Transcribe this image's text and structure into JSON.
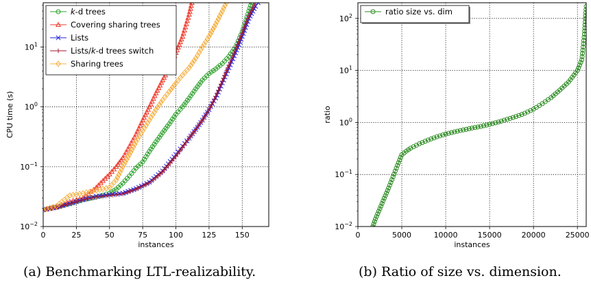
{
  "chart_data": [
    {
      "type": "line",
      "caption": "(a) Benchmarking LTL-realizability.",
      "xlabel": "instances",
      "ylabel": "CPU time (s)",
      "xlim": [
        0,
        170
      ],
      "ylim": [
        0.01,
        55
      ],
      "yscale": "log",
      "xticks": [
        "0",
        "25",
        "50",
        "75",
        "100",
        "125",
        "150"
      ],
      "xtick_values": [
        0,
        25,
        50,
        75,
        100,
        125,
        150
      ],
      "yticks": [
        "10^-2",
        "10^-1",
        "10^0",
        "10^1"
      ],
      "ytick_values": [
        0.01,
        0.1,
        1,
        10
      ],
      "grid": true,
      "legend_position": "top-left",
      "series": [
        {
          "name": "k-d trees",
          "color": "#2ca02c",
          "marker": "circle",
          "x": [
            0,
            10,
            20,
            30,
            40,
            50,
            55,
            60,
            65,
            70,
            75,
            80,
            85,
            90,
            95,
            100,
            105,
            110,
            115,
            120,
            125,
            130,
            135,
            140,
            145,
            150,
            155,
            157
          ],
          "y": [
            0.019,
            0.021,
            0.024,
            0.028,
            0.031,
            0.036,
            0.042,
            0.053,
            0.07,
            0.095,
            0.12,
            0.18,
            0.26,
            0.37,
            0.52,
            0.75,
            1.0,
            1.4,
            2.0,
            2.8,
            3.6,
            4.3,
            5.3,
            7.0,
            10,
            18,
            40,
            55
          ]
        },
        {
          "name": "Covering sharing trees",
          "color": "#ef3b2c",
          "marker": "triangle",
          "x": [
            0,
            10,
            20,
            30,
            40,
            50,
            55,
            60,
            65,
            70,
            75,
            80,
            85,
            90,
            95,
            100,
            105,
            110,
            112
          ],
          "y": [
            0.019,
            0.021,
            0.026,
            0.03,
            0.045,
            0.075,
            0.1,
            0.14,
            0.22,
            0.35,
            0.6,
            1.0,
            1.7,
            2.8,
            4.5,
            8.0,
            15,
            35,
            55
          ]
        },
        {
          "name": "Lists",
          "color": "#1f1fdb",
          "marker": "x",
          "x": [
            0,
            10,
            20,
            30,
            40,
            50,
            60,
            70,
            80,
            90,
            100,
            105,
            110,
            115,
            120,
            125,
            130,
            135,
            140,
            145,
            150,
            155,
            160,
            162
          ],
          "y": [
            0.019,
            0.021,
            0.024,
            0.028,
            0.032,
            0.034,
            0.036,
            0.043,
            0.055,
            0.085,
            0.16,
            0.22,
            0.3,
            0.42,
            0.6,
            0.9,
            1.4,
            2.5,
            4.5,
            8.0,
            15,
            30,
            48,
            55
          ]
        },
        {
          "name": "Lists/k-d trees switch",
          "color": "#a0162e",
          "marker": "plus",
          "x": [
            0,
            10,
            20,
            30,
            40,
            50,
            60,
            70,
            80,
            90,
            100,
            105,
            110,
            115,
            120,
            125,
            130,
            135,
            140,
            145,
            150,
            155,
            160
          ],
          "y": [
            0.019,
            0.021,
            0.024,
            0.028,
            0.031,
            0.033,
            0.035,
            0.042,
            0.054,
            0.082,
            0.15,
            0.21,
            0.3,
            0.42,
            0.6,
            0.9,
            1.5,
            2.7,
            5.0,
            9.0,
            17,
            33,
            55
          ]
        },
        {
          "name": "Sharing trees",
          "color": "#f5b041",
          "marker": "diamond",
          "x": [
            0,
            10,
            20,
            30,
            40,
            50,
            55,
            60,
            65,
            70,
            75,
            80,
            85,
            90,
            95,
            100,
            105,
            110,
            115,
            120,
            125,
            130,
            135,
            138
          ],
          "y": [
            0.019,
            0.022,
            0.033,
            0.036,
            0.04,
            0.045,
            0.06,
            0.1,
            0.16,
            0.26,
            0.4,
            0.6,
            0.9,
            1.3,
            1.8,
            2.5,
            3.4,
            4.5,
            6.5,
            10,
            15,
            24,
            40,
            55
          ]
        }
      ]
    },
    {
      "type": "line",
      "caption": "(b) Ratio of size vs. dimension.",
      "xlabel": "instances",
      "ylabel": "ratio",
      "xlim": [
        0,
        26000
      ],
      "ylim": [
        0.01,
        200
      ],
      "yscale": "log",
      "xticks": [
        "0",
        "5000",
        "10000",
        "15000",
        "20000",
        "25000"
      ],
      "xtick_values": [
        0,
        5000,
        10000,
        15000,
        20000,
        25000
      ],
      "yticks": [
        "10^-2",
        "10^-1",
        "10^0",
        "10^1",
        "10^2"
      ],
      "ytick_values": [
        0.01,
        0.1,
        1,
        10,
        100
      ],
      "grid": true,
      "legend_position": "top-left",
      "series": [
        {
          "name": "ratio size vs. dim",
          "color": "#2a8a1f",
          "marker": "circle",
          "x": [
            1700,
            2000,
            2500,
            3000,
            3500,
            4000,
            4500,
            5000,
            5500,
            6000,
            7000,
            8000,
            9000,
            10000,
            11000,
            12000,
            13000,
            14000,
            15000,
            16000,
            17000,
            18000,
            19000,
            20000,
            21000,
            22000,
            23000,
            24000,
            25000,
            25500,
            25800,
            26000
          ],
          "y": [
            0.01,
            0.014,
            0.022,
            0.035,
            0.055,
            0.09,
            0.15,
            0.24,
            0.28,
            0.32,
            0.39,
            0.46,
            0.53,
            0.6,
            0.66,
            0.72,
            0.78,
            0.84,
            0.92,
            1.02,
            1.15,
            1.3,
            1.5,
            1.8,
            2.3,
            3.0,
            4.2,
            6.0,
            10,
            16,
            50,
            170
          ]
        }
      ]
    }
  ]
}
